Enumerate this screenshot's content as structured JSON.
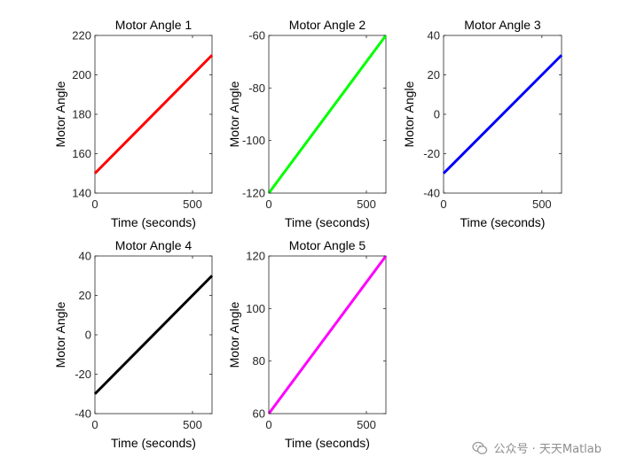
{
  "chart_data": [
    {
      "type": "line",
      "title": "Motor Angle 1",
      "xlabel": "Time (seconds)",
      "ylabel": "Motor Angle",
      "xlim": [
        0,
        600
      ],
      "ylim": [
        140,
        220
      ],
      "xticks": [
        0,
        500
      ],
      "yticks": [
        140,
        160,
        180,
        200,
        220
      ],
      "series": [
        {
          "name": "Motor Angle 1",
          "color": "#ff0000",
          "x": [
            0,
            600
          ],
          "y": [
            150,
            210
          ]
        }
      ]
    },
    {
      "type": "line",
      "title": "Motor Angle 2",
      "xlabel": "Time (seconds)",
      "ylabel": "Motor Angle",
      "xlim": [
        0,
        600
      ],
      "ylim": [
        -120,
        -60
      ],
      "xticks": [
        0,
        500
      ],
      "yticks": [
        -120,
        -100,
        -80,
        -60
      ],
      "series": [
        {
          "name": "Motor Angle 2",
          "color": "#00ff00",
          "x": [
            0,
            600
          ],
          "y": [
            -120,
            -60
          ]
        }
      ]
    },
    {
      "type": "line",
      "title": "Motor Angle 3",
      "xlabel": "Time (seconds)",
      "ylabel": "Motor Angle",
      "xlim": [
        0,
        600
      ],
      "ylim": [
        -40,
        40
      ],
      "xticks": [
        0,
        500
      ],
      "yticks": [
        -40,
        -20,
        0,
        20,
        40
      ],
      "series": [
        {
          "name": "Motor Angle 3",
          "color": "#0000ff",
          "x": [
            0,
            600
          ],
          "y": [
            -30,
            30
          ]
        }
      ]
    },
    {
      "type": "line",
      "title": "Motor Angle 4",
      "xlabel": "Time (seconds)",
      "ylabel": "Motor Angle",
      "xlim": [
        0,
        600
      ],
      "ylim": [
        -40,
        40
      ],
      "xticks": [
        0,
        500
      ],
      "yticks": [
        -40,
        -20,
        0,
        20,
        40
      ],
      "series": [
        {
          "name": "Motor Angle 4",
          "color": "#000000",
          "x": [
            0,
            600
          ],
          "y": [
            -30,
            30
          ]
        }
      ]
    },
    {
      "type": "line",
      "title": "Motor Angle 5",
      "xlabel": "Time (seconds)",
      "ylabel": "Motor Angle",
      "xlim": [
        0,
        600
      ],
      "ylim": [
        60,
        120
      ],
      "xticks": [
        0,
        500
      ],
      "yticks": [
        60,
        80,
        100,
        120
      ],
      "series": [
        {
          "name": "Motor Angle 5",
          "color": "#ff00ff",
          "x": [
            0,
            600
          ],
          "y": [
            60,
            120
          ]
        }
      ]
    }
  ],
  "watermark": {
    "text": "公众号 · 天天Matlab",
    "icon": "wechat-icon"
  }
}
